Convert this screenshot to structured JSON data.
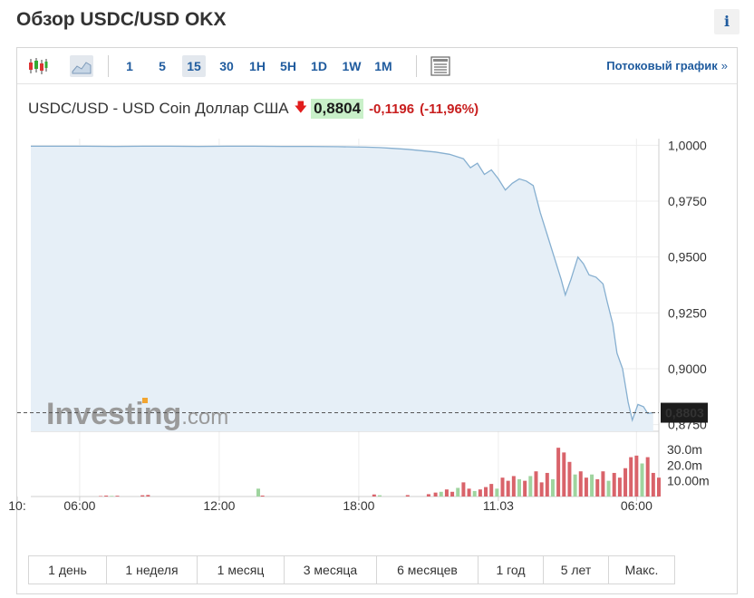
{
  "header": {
    "title": "Обзор USDC/USD OKX",
    "info_label": "i"
  },
  "toolbar": {
    "timeframes": [
      "1",
      "5",
      "15",
      "30",
      "1H",
      "5H",
      "1D",
      "1W",
      "1M"
    ],
    "active_timeframe": "15",
    "stream_link": "Потоковый график",
    "stream_chevron": "»",
    "icons": [
      "candlestick-icon",
      "area-chart-icon",
      "table-view-icon"
    ]
  },
  "quote": {
    "instrument": "USDC/USD - USD Coin Доллар США",
    "direction": "down",
    "price": "0,8804",
    "change": "-0,1196",
    "change_pct": "(-11,96%)"
  },
  "colors": {
    "line": "#86afd0",
    "area": "#e6eff7",
    "vol_up": "#9fd49f",
    "vol_down": "#d9636a",
    "link": "#1f5b9e",
    "negative": "#c81e1e"
  },
  "chart_data": {
    "type": "area",
    "y_ticks": [
      "1,0000",
      "0,9750",
      "0,9500",
      "0,9250",
      "0,9000",
      "0,8750"
    ],
    "ylim": [
      0.872,
      1.003
    ],
    "current_value": 0.8803,
    "current_label": "0,8803",
    "x_ticks": [
      "06:00",
      "12:00",
      "18:00",
      "11.03",
      "06:00",
      "10:"
    ],
    "watermark": "Investing.com",
    "price_series": [
      [
        0,
        0.9996
      ],
      [
        2,
        0.9996
      ],
      [
        4,
        0.9996
      ],
      [
        6,
        0.9995
      ],
      [
        8,
        0.9996
      ],
      [
        10,
        0.9996
      ],
      [
        12,
        0.9995
      ],
      [
        14,
        0.9996
      ],
      [
        16,
        0.9996
      ],
      [
        18,
        0.9995
      ],
      [
        20,
        0.9995
      ],
      [
        22,
        0.9994
      ],
      [
        24,
        0.9992
      ],
      [
        25,
        0.999
      ],
      [
        26,
        0.9986
      ],
      [
        27,
        0.9982
      ],
      [
        28,
        0.9976
      ],
      [
        29,
        0.997
      ],
      [
        30,
        0.996
      ],
      [
        31,
        0.994
      ],
      [
        31.5,
        0.99
      ],
      [
        32,
        0.992
      ],
      [
        32.5,
        0.987
      ],
      [
        33,
        0.989
      ],
      [
        33.5,
        0.985
      ],
      [
        34,
        0.98
      ],
      [
        34.5,
        0.983
      ],
      [
        35,
        0.985
      ],
      [
        35.5,
        0.984
      ],
      [
        36,
        0.982
      ],
      [
        36.5,
        0.97
      ],
      [
        37,
        0.96
      ],
      [
        37.5,
        0.95
      ],
      [
        38,
        0.94
      ],
      [
        38.3,
        0.933
      ],
      [
        38.7,
        0.94
      ],
      [
        39.2,
        0.95
      ],
      [
        39.6,
        0.947
      ],
      [
        40,
        0.942
      ],
      [
        40.5,
        0.941
      ],
      [
        41,
        0.938
      ],
      [
        41.3,
        0.93
      ],
      [
        41.7,
        0.92
      ],
      [
        42,
        0.907
      ],
      [
        42.4,
        0.9
      ],
      [
        42.8,
        0.885
      ],
      [
        43.1,
        0.877
      ],
      [
        43.5,
        0.884
      ],
      [
        43.9,
        0.883
      ],
      [
        44.2,
        0.88
      ],
      [
        44.6,
        0.8803
      ]
    ],
    "x_domain": [
      0,
      45
    ],
    "volume_labels": [
      "30.0m",
      "20.0m",
      "10.00m"
    ],
    "volume_max": 38,
    "volume_bars": [
      [
        5,
        0.3,
        "down"
      ],
      [
        5.4,
        0.6,
        "down"
      ],
      [
        5.8,
        0.4,
        "up"
      ],
      [
        6.2,
        0.5,
        "down"
      ],
      [
        8,
        0.8,
        "down"
      ],
      [
        8.4,
        1.0,
        "down"
      ],
      [
        16.3,
        5.0,
        "up"
      ],
      [
        16.6,
        0.6,
        "down"
      ],
      [
        24.6,
        1.3,
        "down"
      ],
      [
        25,
        0.8,
        "up"
      ],
      [
        27,
        0.9,
        "down"
      ],
      [
        28.5,
        1.5,
        "down"
      ],
      [
        29,
        2.5,
        "down"
      ],
      [
        29.4,
        3.0,
        "up"
      ],
      [
        29.8,
        4.5,
        "down"
      ],
      [
        30.2,
        3.0,
        "down"
      ],
      [
        30.6,
        5.5,
        "up"
      ],
      [
        31,
        9.0,
        "down"
      ],
      [
        31.4,
        5.0,
        "down"
      ],
      [
        31.8,
        3.5,
        "up"
      ],
      [
        32.2,
        4.5,
        "down"
      ],
      [
        32.6,
        6.0,
        "down"
      ],
      [
        33,
        8.0,
        "down"
      ],
      [
        33.4,
        5.0,
        "up"
      ],
      [
        33.8,
        12.0,
        "down"
      ],
      [
        34.2,
        10.0,
        "down"
      ],
      [
        34.6,
        13.0,
        "down"
      ],
      [
        35,
        11.0,
        "up"
      ],
      [
        35.4,
        10.0,
        "down"
      ],
      [
        35.8,
        13.0,
        "up"
      ],
      [
        36.2,
        16.0,
        "down"
      ],
      [
        36.6,
        9.0,
        "down"
      ],
      [
        37,
        15.0,
        "down"
      ],
      [
        37.4,
        11.0,
        "up"
      ],
      [
        37.8,
        31.0,
        "down"
      ],
      [
        38.2,
        28.0,
        "down"
      ],
      [
        38.6,
        22.0,
        "down"
      ],
      [
        39,
        14.0,
        "up"
      ],
      [
        39.4,
        16.0,
        "down"
      ],
      [
        39.8,
        12.0,
        "down"
      ],
      [
        40.2,
        14.0,
        "up"
      ],
      [
        40.6,
        11.0,
        "down"
      ],
      [
        41,
        16.0,
        "down"
      ],
      [
        41.4,
        10.0,
        "up"
      ],
      [
        41.8,
        15.0,
        "down"
      ],
      [
        42.2,
        12.0,
        "down"
      ],
      [
        42.6,
        18.0,
        "down"
      ],
      [
        43,
        25.0,
        "down"
      ],
      [
        43.4,
        26.0,
        "down"
      ],
      [
        43.8,
        21.0,
        "up"
      ],
      [
        44.2,
        25.0,
        "down"
      ],
      [
        44.6,
        15.0,
        "down"
      ],
      [
        45,
        12.0,
        "down"
      ]
    ]
  },
  "ranges": [
    "1 день",
    "1 неделя",
    "1 месяц",
    "3 месяца",
    "6 месяцев",
    "1 год",
    "5 лет",
    "Макс."
  ]
}
